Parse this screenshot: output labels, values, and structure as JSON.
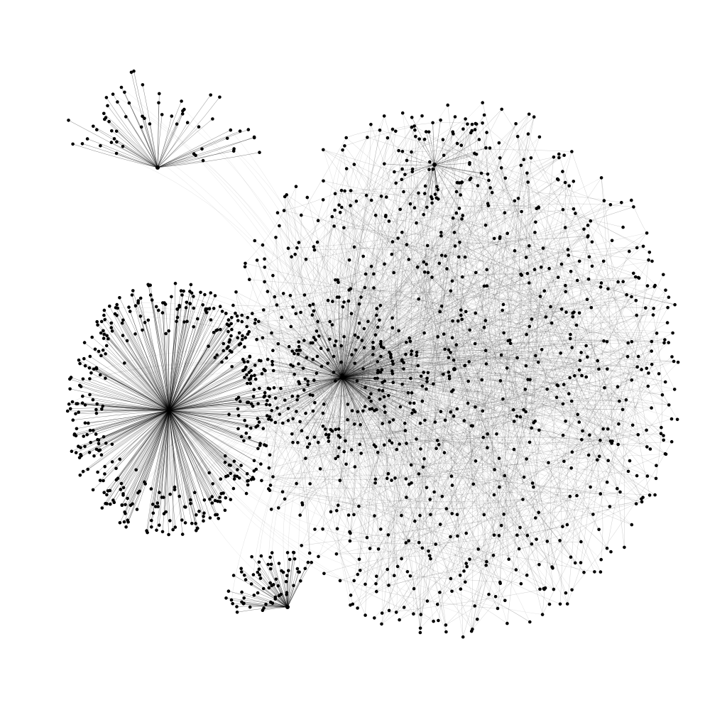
{
  "graph": {
    "type": "network-graph",
    "node_color": "#000000",
    "edge_color": "#000000",
    "background_color": "#ffffff",
    "clusters": [
      {
        "name": "hub-a-dense-star",
        "radial_spokes": true,
        "approx_nodes": 400
      },
      {
        "name": "hub-b-central",
        "radial_spokes": true,
        "approx_nodes": 150
      },
      {
        "name": "top-left-fan",
        "radial_spokes": true,
        "approx_nodes": 60
      },
      {
        "name": "bottom-left-fan",
        "radial_spokes": true,
        "approx_nodes": 70
      },
      {
        "name": "right-diffuse-mass",
        "radial_spokes": false,
        "approx_nodes": 850
      },
      {
        "name": "top-right-sub-hub",
        "radial_spokes": true,
        "approx_nodes": 40
      }
    ]
  }
}
